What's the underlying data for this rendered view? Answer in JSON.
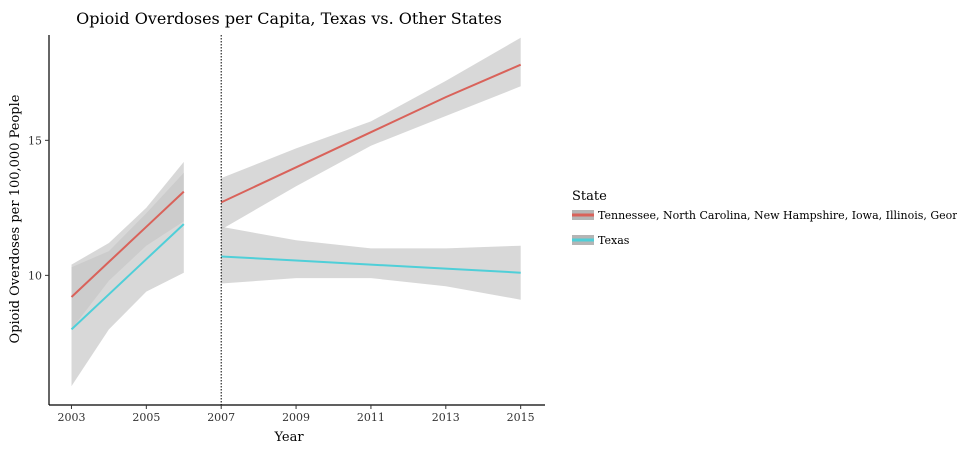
{
  "chart_data": {
    "type": "line",
    "title": "Opioid Overdoses per Capita, Texas vs. Other States",
    "xlabel": "Year",
    "ylabel": "Opioid Overdoses per 100,000 People",
    "xlim": [
      2002.4,
      2015.65
    ],
    "ylim": [
      5.2,
      18.9
    ],
    "x_ticks": [
      2003,
      2005,
      2007,
      2009,
      2011,
      2013,
      2015
    ],
    "y_ticks": [
      10,
      15
    ],
    "vline": 2007,
    "grid": false,
    "legend": {
      "title": "State",
      "placement": "right"
    },
    "band_color": "#c8c8c8",
    "series": [
      {
        "name": "Tennessee, North Carolina, New Hampshire, Iowa, Illinois, Georgia",
        "color": "#d9625a",
        "segments": [
          {
            "x": [
              2003,
              2004,
              2005,
              2006
            ],
            "y": [
              9.2,
              10.5,
              11.8,
              13.1
            ],
            "lower": [
              8.0,
              9.8,
              11.1,
              12.0
            ],
            "upper": [
              10.4,
              11.2,
              12.5,
              14.2
            ]
          },
          {
            "x": [
              2007,
              2009,
              2011,
              2013,
              2015
            ],
            "y": [
              12.7,
              14.0,
              15.3,
              16.6,
              17.8
            ],
            "lower": [
              11.7,
              13.3,
              14.8,
              15.9,
              17.0
            ],
            "upper": [
              13.6,
              14.7,
              15.7,
              17.2,
              18.8
            ]
          }
        ]
      },
      {
        "name": "Texas",
        "color": "#4fcfd8",
        "segments": [
          {
            "x": [
              2003,
              2004,
              2005,
              2006
            ],
            "y": [
              8.0,
              9.3,
              10.6,
              11.9
            ],
            "lower": [
              5.9,
              8.0,
              9.4,
              10.1
            ],
            "upper": [
              10.3,
              10.9,
              12.3,
              13.8
            ]
          },
          {
            "x": [
              2007,
              2009,
              2011,
              2013,
              2015
            ],
            "y": [
              10.7,
              10.55,
              10.4,
              10.25,
              10.1
            ],
            "lower": [
              9.7,
              9.9,
              9.9,
              9.6,
              9.1
            ],
            "upper": [
              11.8,
              11.3,
              11.0,
              11.0,
              11.1
            ]
          }
        ]
      }
    ]
  }
}
